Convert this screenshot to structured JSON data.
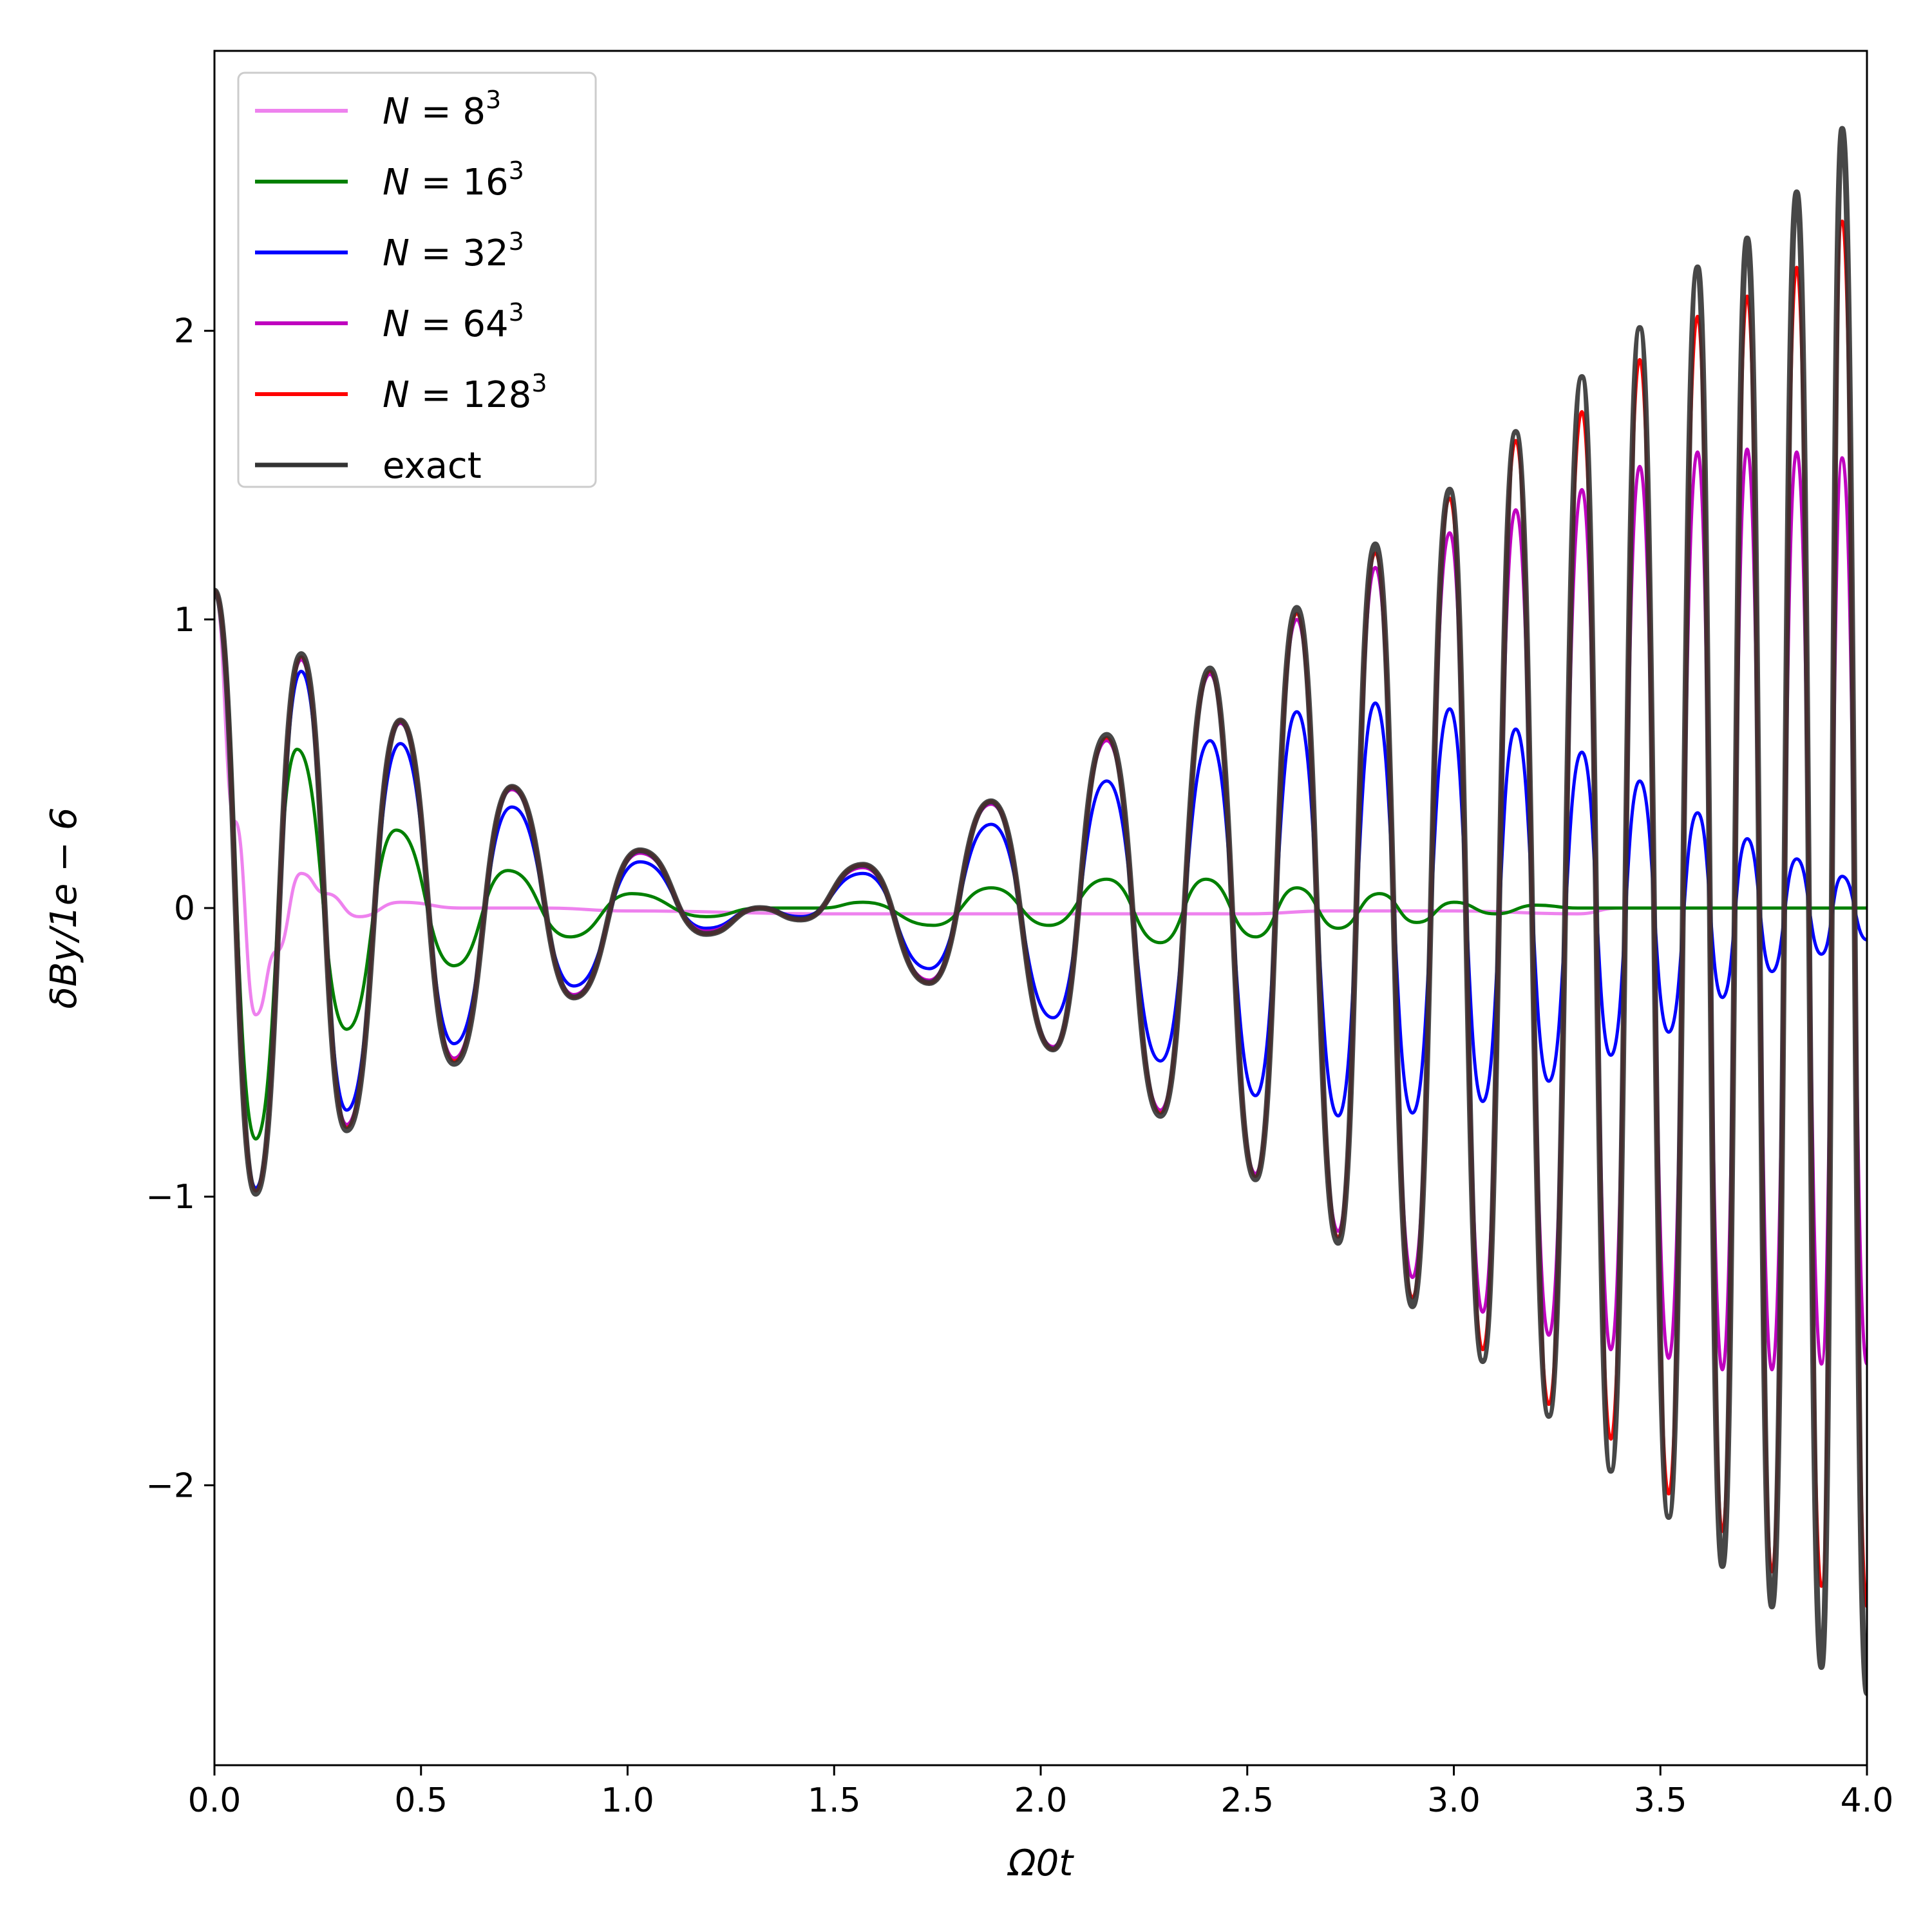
{
  "chart_data": {
    "type": "line",
    "title": "",
    "xlabel": "Ω0t",
    "ylabel": "δBy/1e − 6",
    "xlim": [
      0.0,
      4.0
    ],
    "ylim": [
      -2.97,
      2.97
    ],
    "xticks": [
      "0.0",
      "0.5",
      "1.0",
      "1.5",
      "2.0",
      "2.5",
      "3.0",
      "3.5",
      "4.0"
    ],
    "xtick_values": [
      0.0,
      0.5,
      1.0,
      1.5,
      2.0,
      2.5,
      3.0,
      3.5,
      4.0
    ],
    "yticks": [
      "−2",
      "−1",
      "0",
      "1",
      "2"
    ],
    "ytick_values": [
      -2,
      -1,
      0,
      1,
      2
    ],
    "grid": false,
    "legend_position": "top-left",
    "series": [
      {
        "name": "N = 8³",
        "name_base": "N = 8",
        "name_sup": "3",
        "color": "#ee82ee",
        "x": [
          0.0,
          0.05,
          0.1,
          0.15,
          0.21,
          0.27,
          0.35,
          0.45,
          0.6,
          0.8,
          1.0,
          1.5,
          2.0,
          2.5,
          2.7,
          3.0,
          3.3,
          3.4
        ],
        "y": [
          1.1,
          0.3,
          -0.37,
          -0.15,
          0.12,
          0.05,
          -0.03,
          0.02,
          0.0,
          0.0,
          -0.01,
          -0.02,
          -0.02,
          -0.02,
          -0.01,
          -0.01,
          -0.02,
          0.0
        ]
      },
      {
        "name": "N = 16³",
        "name_base": "N = 16",
        "name_sup": "3",
        "color": "#008000",
        "x": [
          0.0,
          0.1,
          0.2,
          0.32,
          0.44,
          0.58,
          0.71,
          0.86,
          1.01,
          1.19,
          1.32,
          1.47,
          1.57,
          1.74,
          1.88,
          2.02,
          2.16,
          2.29,
          2.4,
          2.52,
          2.62,
          2.72,
          2.82,
          2.91,
          3.0,
          3.1,
          3.2,
          3.3,
          3.4,
          4.0
        ],
        "y": [
          1.1,
          -0.8,
          0.55,
          -0.42,
          0.27,
          -0.2,
          0.13,
          -0.1,
          0.05,
          -0.03,
          0.0,
          0.0,
          0.02,
          -0.06,
          0.07,
          -0.06,
          0.1,
          -0.12,
          0.1,
          -0.1,
          0.07,
          -0.07,
          0.05,
          -0.05,
          0.02,
          -0.02,
          0.01,
          0.0,
          0.0,
          0.0
        ]
      },
      {
        "name": "N = 32³",
        "name_base": "N = 32",
        "name_sup": "3",
        "color": "#0000ff",
        "x": [
          0.0,
          0.1,
          0.21,
          0.32,
          0.45,
          0.58,
          0.72,
          0.87,
          1.03,
          1.19,
          1.32,
          1.42,
          1.57,
          1.73,
          1.88,
          2.03,
          2.16,
          2.29,
          2.41,
          2.52,
          2.62,
          2.72,
          2.81,
          2.9,
          2.99,
          3.07,
          3.15,
          3.23,
          3.31,
          3.38,
          3.45,
          3.52,
          3.59,
          3.65,
          3.71,
          3.77,
          3.83,
          3.89,
          3.94,
          4.0
        ],
        "y": [
          1.1,
          -0.97,
          0.82,
          -0.7,
          0.57,
          -0.47,
          0.35,
          -0.27,
          0.16,
          -0.07,
          0.0,
          -0.03,
          0.12,
          -0.21,
          0.29,
          -0.38,
          0.44,
          -0.53,
          0.58,
          -0.65,
          0.68,
          -0.72,
          0.71,
          -0.71,
          0.69,
          -0.67,
          0.62,
          -0.6,
          0.54,
          -0.51,
          0.44,
          -0.43,
          0.33,
          -0.31,
          0.24,
          -0.22,
          0.17,
          -0.16,
          0.11,
          -0.11
        ]
      },
      {
        "name": "N = 64³",
        "name_base": "N = 64",
        "name_sup": "3",
        "color": "#bf00bf",
        "x": [
          0.0,
          0.1,
          0.21,
          0.32,
          0.45,
          0.58,
          0.72,
          0.87,
          1.03,
          1.19,
          1.32,
          1.42,
          1.57,
          1.73,
          1.88,
          2.03,
          2.16,
          2.29,
          2.41,
          2.52,
          2.62,
          2.72,
          2.81,
          2.9,
          2.99,
          3.07,
          3.15,
          3.23,
          3.31,
          3.38,
          3.45,
          3.52,
          3.59,
          3.65,
          3.71,
          3.77,
          3.83,
          3.89,
          3.94,
          4.0
        ],
        "y": [
          1.1,
          -0.98,
          0.86,
          -0.75,
          0.64,
          -0.52,
          0.41,
          -0.3,
          0.19,
          -0.08,
          0.0,
          -0.04,
          0.14,
          -0.25,
          0.36,
          -0.48,
          0.58,
          -0.7,
          0.81,
          -0.92,
          1.0,
          -1.12,
          1.18,
          -1.28,
          1.3,
          -1.4,
          1.38,
          -1.48,
          1.45,
          -1.53,
          1.53,
          -1.56,
          1.58,
          -1.6,
          1.59,
          -1.6,
          1.58,
          -1.58,
          1.56,
          -1.58
        ]
      },
      {
        "name": "N = 128³",
        "name_base": "N = 128",
        "name_sup": "3",
        "color": "#ff0000",
        "x": [
          0.0,
          0.1,
          0.21,
          0.32,
          0.45,
          0.58,
          0.72,
          0.87,
          1.03,
          1.19,
          1.32,
          1.42,
          1.57,
          1.73,
          1.88,
          2.03,
          2.16,
          2.29,
          2.41,
          2.52,
          2.62,
          2.72,
          2.81,
          2.9,
          2.99,
          3.07,
          3.15,
          3.23,
          3.31,
          3.38,
          3.45,
          3.52,
          3.59,
          3.65,
          3.71,
          3.77,
          3.83,
          3.89,
          3.94,
          4.0
        ],
        "y": [
          1.1,
          -0.98,
          0.87,
          -0.76,
          0.65,
          -0.53,
          0.42,
          -0.31,
          0.2,
          -0.09,
          0.0,
          -0.04,
          0.15,
          -0.26,
          0.37,
          -0.49,
          0.59,
          -0.71,
          0.82,
          -0.93,
          1.02,
          -1.14,
          1.23,
          -1.35,
          1.42,
          -1.53,
          1.62,
          -1.72,
          1.72,
          -1.84,
          1.9,
          -2.03,
          2.05,
          -2.16,
          2.12,
          -2.3,
          2.22,
          -2.35,
          2.38,
          -2.42
        ]
      },
      {
        "name": "exact",
        "name_base": "exact",
        "name_sup": "",
        "color": "#333333",
        "x": [
          0.0,
          0.1,
          0.21,
          0.32,
          0.45,
          0.58,
          0.72,
          0.87,
          1.03,
          1.19,
          1.32,
          1.42,
          1.57,
          1.73,
          1.88,
          2.03,
          2.16,
          2.29,
          2.41,
          2.52,
          2.62,
          2.72,
          2.81,
          2.9,
          2.99,
          3.07,
          3.15,
          3.23,
          3.31,
          3.38,
          3.45,
          3.52,
          3.59,
          3.65,
          3.71,
          3.77,
          3.83,
          3.89,
          3.94,
          4.0
        ],
        "y": [
          1.1,
          -0.99,
          0.88,
          -0.77,
          0.65,
          -0.54,
          0.42,
          -0.31,
          0.2,
          -0.09,
          0.0,
          -0.04,
          0.15,
          -0.26,
          0.37,
          -0.49,
          0.6,
          -0.72,
          0.83,
          -0.94,
          1.04,
          -1.16,
          1.26,
          -1.38,
          1.45,
          -1.57,
          1.65,
          -1.76,
          1.84,
          -1.95,
          2.01,
          -2.11,
          2.22,
          -2.28,
          2.32,
          -2.42,
          2.48,
          -2.63,
          2.7,
          -2.72
        ]
      }
    ]
  }
}
